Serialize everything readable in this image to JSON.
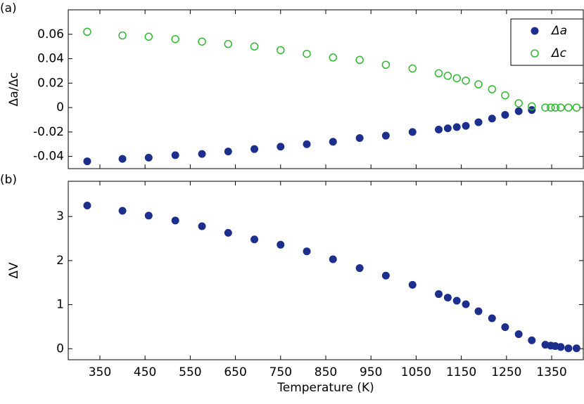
{
  "chart_data": [
    {
      "type": "scatter",
      "panel_label": "(a)",
      "y_label": "Δa/Δc",
      "x": [
        322,
        400,
        458,
        517,
        576,
        634,
        692,
        750,
        808,
        866,
        925,
        983,
        1042,
        1100,
        1120,
        1140,
        1160,
        1188,
        1218,
        1247,
        1277,
        1306,
        1336,
        1348,
        1358,
        1370,
        1387,
        1405
      ],
      "series": [
        {
          "name": "Δa",
          "color": "#1c2f8c",
          "marker_fill": "filled",
          "values": [
            -0.044,
            -0.042,
            -0.041,
            -0.039,
            -0.038,
            -0.036,
            -0.034,
            -0.032,
            -0.03,
            -0.028,
            -0.025,
            -0.023,
            -0.02,
            -0.018,
            -0.017,
            -0.016,
            -0.015,
            -0.012,
            -0.009,
            -0.006,
            -0.003,
            -0.002,
            null,
            null,
            null,
            null,
            null,
            null
          ]
        },
        {
          "name": "Δc",
          "color": "#2eb82e",
          "marker_fill": "none",
          "values": [
            0.062,
            0.059,
            0.058,
            0.056,
            0.054,
            0.052,
            0.05,
            0.047,
            0.044,
            0.041,
            0.039,
            0.035,
            0.032,
            0.028,
            0.026,
            0.024,
            0.022,
            0.019,
            0.015,
            0.01,
            0.0035,
            0.001,
            0,
            0,
            0,
            0,
            0,
            0
          ]
        }
      ],
      "xlim": [
        280,
        1420
      ],
      "ylim": [
        -0.05,
        0.08
      ],
      "yticks": [
        -0.04,
        -0.02,
        0,
        0.02,
        0.04,
        0.06
      ],
      "legend": "upper right"
    },
    {
      "type": "scatter",
      "panel_label": "(b)",
      "y_label": "ΔV",
      "x_label": "Temperature (K)",
      "x": [
        322,
        400,
        458,
        517,
        576,
        634,
        692,
        750,
        808,
        866,
        925,
        983,
        1042,
        1100,
        1120,
        1140,
        1160,
        1188,
        1218,
        1247,
        1277,
        1306,
        1336,
        1348,
        1358,
        1370,
        1387,
        1405
      ],
      "series": [
        {
          "name": "ΔV",
          "color": "#1c2f8c",
          "marker_fill": "filled",
          "values": [
            3.25,
            3.13,
            3.02,
            2.91,
            2.78,
            2.63,
            2.48,
            2.36,
            2.21,
            2.03,
            1.83,
            1.66,
            1.45,
            1.24,
            1.16,
            1.09,
            1.01,
            0.85,
            0.69,
            0.49,
            0.33,
            0.19,
            0.09,
            0.07,
            0.06,
            0.04,
            0.01,
            0.01
          ]
        }
      ],
      "xlim": [
        280,
        1420
      ],
      "ylim": [
        -0.25,
        3.8
      ],
      "xticks": [
        350,
        450,
        550,
        650,
        750,
        850,
        950,
        1050,
        1150,
        1250,
        1350
      ],
      "yticks": [
        0,
        1,
        2,
        3
      ]
    }
  ]
}
